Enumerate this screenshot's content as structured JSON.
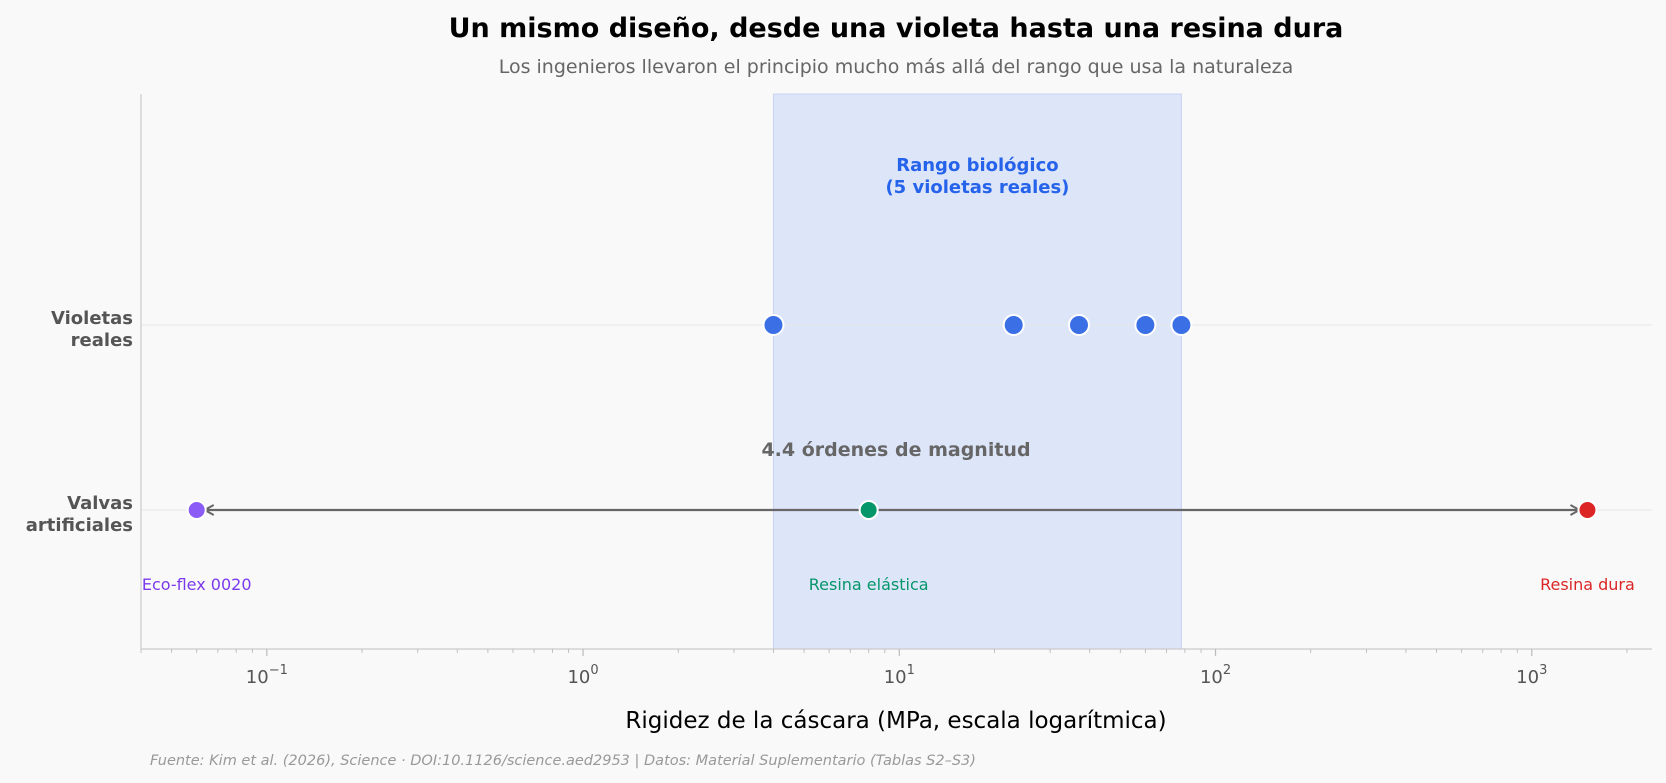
{
  "chart_data": {
    "type": "scatter",
    "title": "Un mismo diseño, desde una violeta hasta una resina dura",
    "subtitle": "Los ingenieros llevaron el principio mucho más allá del rango que usa la naturaleza",
    "xlabel": "Rigidez de la cáscara (MPa, escala logarítmica)",
    "x_scale": "log",
    "xlim": [
      0.04,
      2400
    ],
    "x_ticks": [
      0.1,
      1,
      10,
      100,
      1000
    ],
    "x_tick_labels": [
      {
        "base": "10",
        "exp": "−1"
      },
      {
        "base": "10",
        "exp": "0"
      },
      {
        "base": "10",
        "exp": "1"
      },
      {
        "base": "10",
        "exp": "2"
      },
      {
        "base": "10",
        "exp": "3"
      }
    ],
    "categories": [
      {
        "label_line1": "Violetas",
        "label_line2": "reales"
      },
      {
        "label_line1": "Valvas",
        "label_line2": "artificiales"
      }
    ],
    "series": [
      {
        "category_index": 0,
        "color": "#3a6fe6",
        "values": [
          4,
          23,
          37,
          60,
          78
        ]
      },
      {
        "category_index": 1,
        "points": [
          {
            "x": 0.06,
            "label": "Eco-flex 0020",
            "color": "#8b5cf6",
            "label_color": "#7c3aed"
          },
          {
            "x": 8,
            "label": "Resina elástica",
            "color": "#059669",
            "label_color": "#059669"
          },
          {
            "x": 1500,
            "label": "Resina dura",
            "color": "#dc2626",
            "label_color": "#dc2626"
          }
        ]
      }
    ],
    "band": {
      "x_range": [
        4,
        78
      ],
      "color": "#dde5f9",
      "label_line1": "Rango biológico",
      "label_line2": "(5 violetas reales)"
    },
    "span_arrow": {
      "x_range": [
        0.06,
        1500
      ],
      "label": "4.4 órdenes de magnitud",
      "color": "#666666"
    },
    "grid": "horizontal-light",
    "footer": "Fuente: Kim et al. (2026), Science · DOI:10.1126/science.aed2953 | Datos: Material Suplementario (Tablas S2–S3)"
  }
}
